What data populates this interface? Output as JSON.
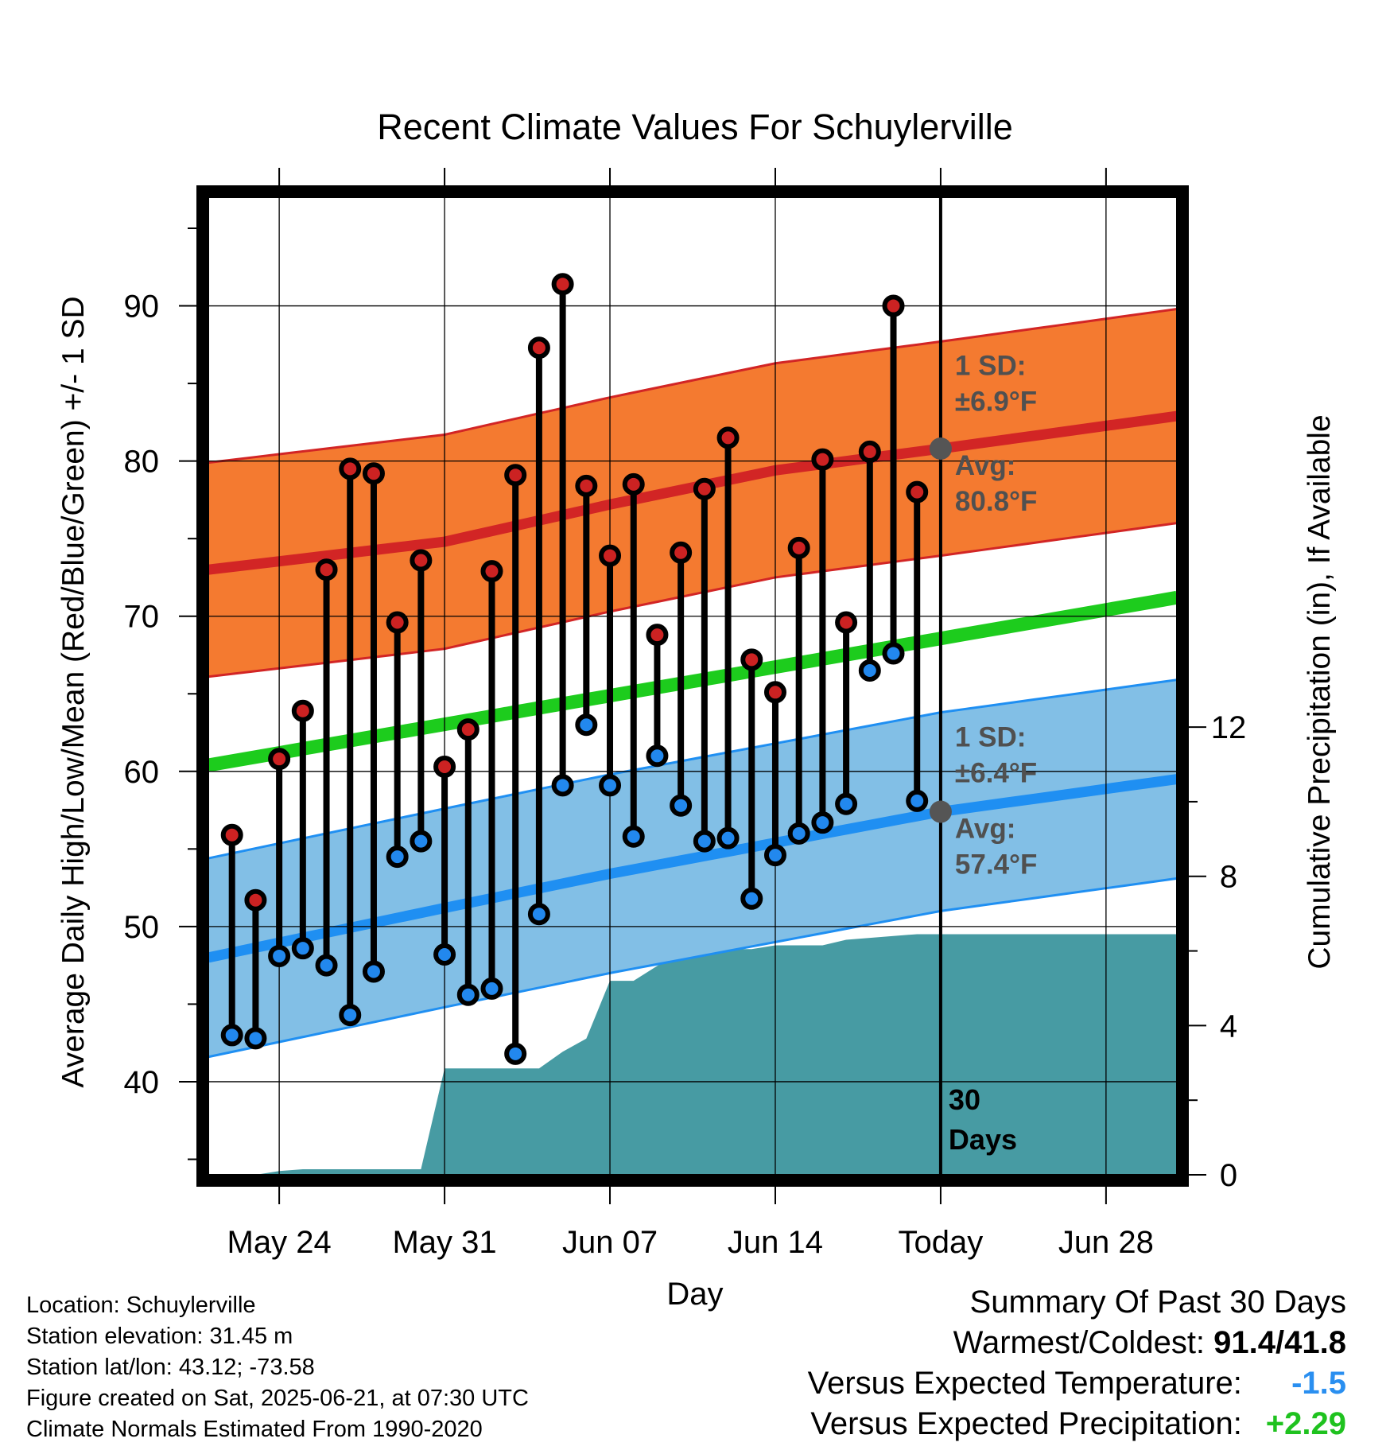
{
  "chart_data": {
    "type": "line",
    "title": "Recent Climate Values For Schuylerville",
    "xlabel": "Day",
    "ylabel": "Average Daily High/Low/Mean (Red/Blue/Green) +/- 1 SD",
    "y2label": "Cumulative Precipitation (in), If Available",
    "ylim": [
      34,
      97
    ],
    "y2lim": [
      0,
      26.2
    ],
    "yticks": [
      40,
      50,
      60,
      70,
      80,
      90
    ],
    "y2ticks": [
      0,
      4,
      8,
      12
    ],
    "xrange": [
      "2025-05-21",
      "2025-07-01"
    ],
    "xticks": [
      {
        "date": "2025-05-24",
        "label": "May 24"
      },
      {
        "date": "2025-05-31",
        "label": "May 31"
      },
      {
        "date": "2025-06-07",
        "label": "Jun 07"
      },
      {
        "date": "2025-06-14",
        "label": "Jun 14"
      },
      {
        "date": "2025-06-21",
        "label": "Today"
      },
      {
        "date": "2025-06-28",
        "label": "Jun 28"
      }
    ],
    "today": "2025-06-21",
    "today_label": "30 Days",
    "normals": {
      "high_avg": [
        [
          "2025-05-21",
          73.0
        ],
        [
          "2025-05-31",
          74.8
        ],
        [
          "2025-06-07",
          77.2
        ],
        [
          "2025-06-14",
          79.4
        ],
        [
          "2025-06-21",
          80.8
        ],
        [
          "2025-07-01",
          82.9
        ]
      ],
      "high_sd": 6.9,
      "low_avg": [
        [
          "2025-05-21",
          48.0
        ],
        [
          "2025-05-31",
          51.2
        ],
        [
          "2025-06-07",
          53.4
        ],
        [
          "2025-06-14",
          55.4
        ],
        [
          "2025-06-21",
          57.4
        ],
        [
          "2025-07-01",
          59.5
        ]
      ],
      "low_sd": 6.4,
      "mean_avg": [
        [
          "2025-05-21",
          60.4
        ],
        [
          "2025-07-01",
          71.2
        ]
      ]
    },
    "annotations": {
      "high_sd_label": "1 SD:",
      "high_sd_value": "±6.9°F",
      "high_avg_label": "Avg:",
      "high_avg_value": "80.8°F",
      "low_sd_label": "1 SD:",
      "low_sd_value": "±6.4°F",
      "low_avg_label": "Avg:",
      "low_avg_value": "57.4°F"
    },
    "series": [
      {
        "name": "High",
        "color": "#cc2222",
        "values": [
          [
            "2025-05-22",
            55.9
          ],
          [
            "2025-05-23",
            51.7
          ],
          [
            "2025-05-24",
            60.8
          ],
          [
            "2025-05-25",
            63.9
          ],
          [
            "2025-05-26",
            73.0
          ],
          [
            "2025-05-27",
            79.5
          ],
          [
            "2025-05-28",
            79.2
          ],
          [
            "2025-05-29",
            69.6
          ],
          [
            "2025-05-30",
            73.6
          ],
          [
            "2025-05-31",
            60.3
          ],
          [
            "2025-06-01",
            62.7
          ],
          [
            "2025-06-02",
            72.9
          ],
          [
            "2025-06-03",
            79.1
          ],
          [
            "2025-06-04",
            87.3
          ],
          [
            "2025-06-05",
            91.4
          ],
          [
            "2025-06-06",
            78.4
          ],
          [
            "2025-06-07",
            73.9
          ],
          [
            "2025-06-08",
            78.5
          ],
          [
            "2025-06-09",
            68.8
          ],
          [
            "2025-06-10",
            74.1
          ],
          [
            "2025-06-11",
            78.2
          ],
          [
            "2025-06-12",
            81.5
          ],
          [
            "2025-06-13",
            67.2
          ],
          [
            "2025-06-14",
            65.1
          ],
          [
            "2025-06-15",
            74.4
          ],
          [
            "2025-06-16",
            80.1
          ],
          [
            "2025-06-17",
            69.6
          ],
          [
            "2025-06-18",
            80.6
          ],
          [
            "2025-06-19",
            90.0
          ],
          [
            "2025-06-20",
            78.0
          ]
        ]
      },
      {
        "name": "Low",
        "color": "#2288ee",
        "values": [
          [
            "2025-05-22",
            43.0
          ],
          [
            "2025-05-23",
            42.8
          ],
          [
            "2025-05-24",
            48.1
          ],
          [
            "2025-05-25",
            48.6
          ],
          [
            "2025-05-26",
            47.5
          ],
          [
            "2025-05-27",
            44.3
          ],
          [
            "2025-05-28",
            47.1
          ],
          [
            "2025-05-29",
            54.5
          ],
          [
            "2025-05-30",
            55.5
          ],
          [
            "2025-05-31",
            48.2
          ],
          [
            "2025-06-01",
            45.6
          ],
          [
            "2025-06-02",
            46.0
          ],
          [
            "2025-06-03",
            41.8
          ],
          [
            "2025-06-04",
            50.8
          ],
          [
            "2025-06-05",
            59.1
          ],
          [
            "2025-06-06",
            63.0
          ],
          [
            "2025-06-07",
            59.1
          ],
          [
            "2025-06-08",
            55.8
          ],
          [
            "2025-06-09",
            61.0
          ],
          [
            "2025-06-10",
            57.8
          ],
          [
            "2025-06-11",
            55.5
          ],
          [
            "2025-06-12",
            55.7
          ],
          [
            "2025-06-13",
            51.8
          ],
          [
            "2025-06-14",
            54.6
          ],
          [
            "2025-06-15",
            56.0
          ],
          [
            "2025-06-16",
            56.7
          ],
          [
            "2025-06-17",
            57.9
          ],
          [
            "2025-06-18",
            66.5
          ],
          [
            "2025-06-19",
            67.6
          ],
          [
            "2025-06-20",
            58.1
          ]
        ]
      },
      {
        "name": "Cumulative Precipitation",
        "color": "#479ba3",
        "values": [
          [
            "2025-05-22",
            0.0
          ],
          [
            "2025-05-23",
            0.0
          ],
          [
            "2025-05-24",
            0.1
          ],
          [
            "2025-05-25",
            0.15
          ],
          [
            "2025-05-26",
            0.15
          ],
          [
            "2025-05-27",
            0.15
          ],
          [
            "2025-05-28",
            0.15
          ],
          [
            "2025-05-29",
            0.15
          ],
          [
            "2025-05-30",
            0.15
          ],
          [
            "2025-05-31",
            2.85
          ],
          [
            "2025-06-01",
            2.85
          ],
          [
            "2025-06-02",
            2.85
          ],
          [
            "2025-06-03",
            2.85
          ],
          [
            "2025-06-04",
            2.85
          ],
          [
            "2025-06-05",
            3.3
          ],
          [
            "2025-06-06",
            3.65
          ],
          [
            "2025-06-07",
            5.2
          ],
          [
            "2025-06-08",
            5.2
          ],
          [
            "2025-06-09",
            5.6
          ],
          [
            "2025-06-10",
            5.95
          ],
          [
            "2025-06-11",
            6.05
          ],
          [
            "2025-06-12",
            6.05
          ],
          [
            "2025-06-13",
            6.05
          ],
          [
            "2025-06-14",
            6.15
          ],
          [
            "2025-06-15",
            6.15
          ],
          [
            "2025-06-16",
            6.15
          ],
          [
            "2025-06-17",
            6.3
          ],
          [
            "2025-06-18",
            6.35
          ],
          [
            "2025-06-19",
            6.4
          ],
          [
            "2025-06-20",
            6.45
          ],
          [
            "2025-06-21",
            6.45
          ],
          [
            "2025-07-01",
            6.45
          ]
        ]
      }
    ]
  },
  "station": {
    "location": "Location: Schuylerville",
    "elevation": "Station elevation: 31.45 m",
    "latlon": "Station lat/lon: 43.12; -73.58",
    "created": "Figure created on Sat, 2025-06-21, at 07:30 UTC",
    "normals": "Climate Normals Estimated From 1990-2020"
  },
  "summary": {
    "title": "Summary Of Past 30 Days",
    "warmest_coldest_label": "Warmest/Coldest:",
    "warmest_coldest_value": "91.4/41.8",
    "temp_label": "Versus Expected Temperature:",
    "temp_value": "-1.5",
    "temp_color": "#2a8ff0",
    "precip_label": "Versus Expected Precipitation:",
    "precip_value": "+2.29",
    "precip_color": "#1fc21f"
  },
  "colors": {
    "high_band": "#f47a30",
    "high_line": "#d22525",
    "low_band": "#82bfe6",
    "low_line": "#1f8ff2",
    "mean_line": "#1dcc1d",
    "precip": "#479ba3",
    "annotation": "#505050"
  }
}
